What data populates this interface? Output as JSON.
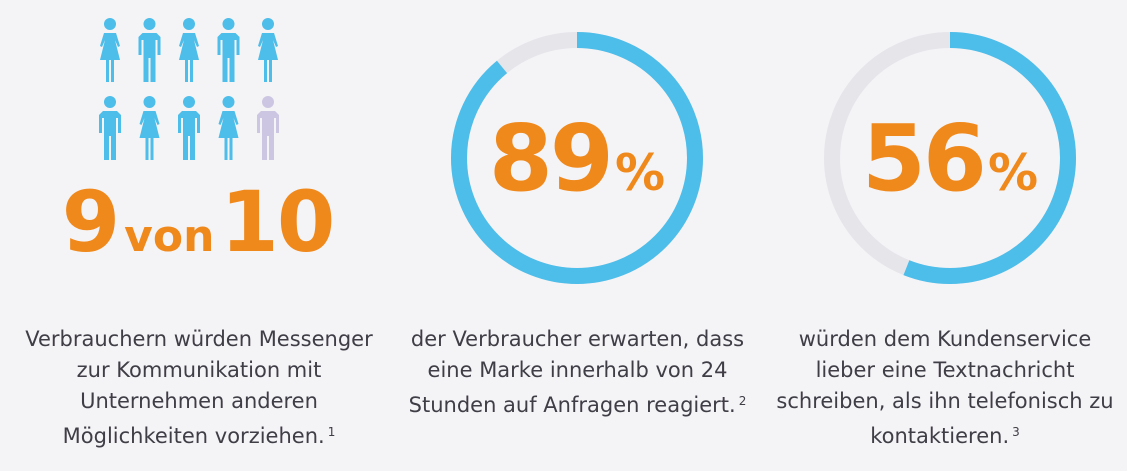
{
  "stat_people": {
    "count": "9",
    "connector": "von",
    "total": "10",
    "highlighted": 9,
    "total_figures": 10,
    "caption": "Verbrauchern würden Messenger zur Kommunikation mit Unternehmen anderen Möglichkeiten vorziehen.",
    "footnote": "1"
  },
  "stat_response": {
    "value": "89",
    "unit": "%",
    "caption": "der Verbraucher erwarten, dass eine Marke innerhalb von 24 Stunden auf Anfragen reagiert.",
    "footnote": "2"
  },
  "stat_text": {
    "value": "56",
    "unit": "%",
    "caption": "würden dem Kundenservice lieber eine Textnachricht schreiben, als ihn telefonisch zu kontaktieren.",
    "footnote": "3"
  },
  "colors": {
    "accent_orange": "#f0891c",
    "ring_blue": "#4dbde9",
    "ring_track": "#e6e5ea",
    "figure_blue": "#4dbde9",
    "figure_muted": "#cdc6e2",
    "text": "#3f3d45",
    "background": "#f4f3f6"
  },
  "chart_data": [
    {
      "type": "pictogram",
      "value": 9,
      "total": 10,
      "label": "9 von 10"
    },
    {
      "type": "pie",
      "values": [
        89,
        11
      ],
      "label": "89%"
    },
    {
      "type": "pie",
      "values": [
        56,
        44
      ],
      "label": "56%"
    }
  ]
}
